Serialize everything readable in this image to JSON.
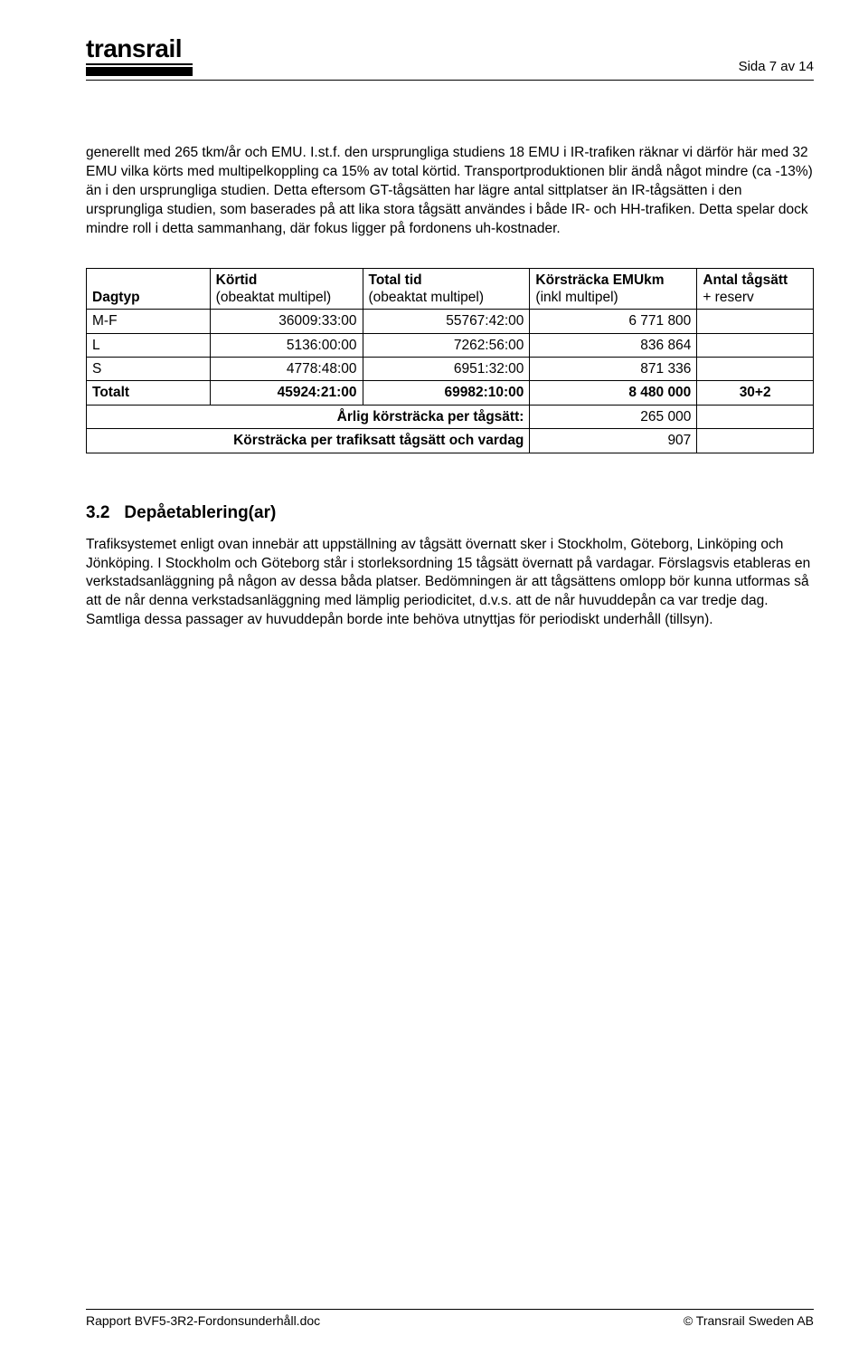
{
  "header": {
    "logo_text": "transrail",
    "page_label": "Sida 7 av 14"
  },
  "paragraph1": "generellt med 265 tkm/år och EMU. I.st.f. den ursprungliga studiens 18 EMU i IR-trafiken räknar vi därför här med 32 EMU vilka körts med multipelkoppling ca 15% av total körtid. Transportproduktionen blir ändå något mindre (ca -13%) än i den ursprungliga studien. Detta eftersom GT-tågsätten har lägre antal sittplatser än IR-tågsätten i den ursprungliga studien, som baserades på att lika stora tågsätt användes i både IR- och HH-trafiken. Detta spelar dock mindre roll i detta sammanhang, där fokus ligger på fordonens uh-kostnader.",
  "table": {
    "headers": {
      "dagtyp": "Dagtyp",
      "kortid_l1": "Körtid",
      "kortid_l2": "(obeaktat multipel)",
      "total_l1": "Total tid",
      "total_l2": "(obeaktat multipel)",
      "emukm_l1": "Körsträcka EMUkm",
      "emukm_l2": "(inkl multipel)",
      "antal_l1": "Antal tågsätt",
      "antal_l2": "+ reserv"
    },
    "rows": [
      {
        "dagtyp": "M-F",
        "kortid": "36009:33:00",
        "total": "55767:42:00",
        "emukm": "6 771 800",
        "antal": ""
      },
      {
        "dagtyp": "L",
        "kortid": "5136:00:00",
        "total": "7262:56:00",
        "emukm": "836 864",
        "antal": ""
      },
      {
        "dagtyp": "S",
        "kortid": "4778:48:00",
        "total": "6951:32:00",
        "emukm": "871 336",
        "antal": ""
      }
    ],
    "totalt_row": {
      "label": "Totalt",
      "kortid": "45924:21:00",
      "total": "69982:10:00",
      "emukm": "8 480 000",
      "antal": "30+2"
    },
    "annual_row": {
      "label": "Årlig körsträcka per tågsätt:",
      "value": "265 000"
    },
    "vardag_row": {
      "label": "Körsträcka per trafiksatt tågsätt och vardag",
      "value": "907"
    }
  },
  "section": {
    "number": "3.2",
    "title": "Depåetablering(ar)",
    "body": "Trafiksystemet enligt ovan innebär att uppställning av tågsätt övernatt sker i Stockholm, Göteborg, Linköping och Jönköping. I Stockholm och Göteborg står i storleksordning 15 tågsätt övernatt på vardagar. Förslagsvis etableras en verkstadsanläggning på någon av dessa båda platser. Bedömningen är att tågsättens omlopp bör kunna utformas så att de når denna verkstadsanläggning med lämplig periodicitet, d.v.s. att de når huvuddepån ca var tredje dag. Samtliga dessa passager av huvuddepån borde inte behöva utnyttjas för periodiskt underhåll (tillsyn)."
  },
  "footer": {
    "left": "Rapport  BVF5-3R2-Fordonsunderhåll.doc",
    "right": "© Transrail Sweden AB"
  }
}
